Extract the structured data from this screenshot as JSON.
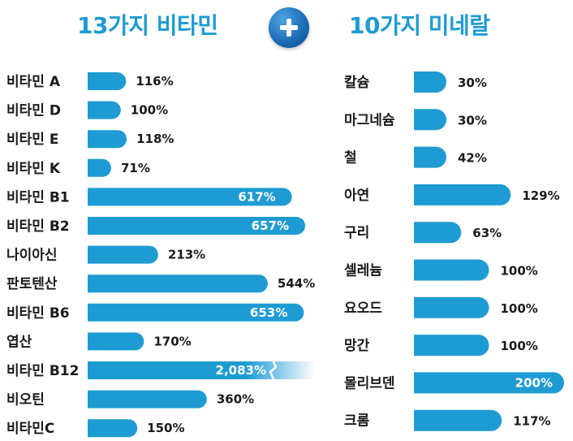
{
  "header": {
    "left_title": "13가지 비타민",
    "right_title": "10가지 미네랄",
    "plus_icon": "plus-icon"
  },
  "colors": {
    "bar": "#1f9bd3",
    "title": "#1f9bd3",
    "text": "#1a1a1a"
  },
  "chart_data": [
    {
      "type": "bar",
      "orientation": "horizontal",
      "title": "13가지 비타민",
      "categories": [
        "비타민 A",
        "비타민 D",
        "비타민 E",
        "비타민 K",
        "비타민 B1",
        "비타민 B2",
        "나이아신",
        "판토텐산",
        "비타민 B6",
        "엽산",
        "비타민 B12",
        "비오틴",
        "비타민C"
      ],
      "values": [
        116,
        100,
        118,
        71,
        617,
        657,
        213,
        544,
        653,
        170,
        2083,
        360,
        150
      ],
      "labels": [
        "116%",
        "100%",
        "118%",
        "71%",
        "617%",
        "657%",
        "213%",
        "544%",
        "653%",
        "170%",
        "2,083%",
        "360%",
        "150%"
      ],
      "axis_break_values": [
        2083
      ]
    },
    {
      "type": "bar",
      "orientation": "horizontal",
      "title": "10가지 미네랄",
      "categories": [
        "칼슘",
        "마그네슘",
        "철",
        "아연",
        "구리",
        "셀레늄",
        "요오드",
        "망간",
        "몰리브덴",
        "크롬"
      ],
      "values": [
        30,
        30,
        42,
        129,
        63,
        100,
        100,
        100,
        200,
        117
      ],
      "labels": [
        "30%",
        "30%",
        "42%",
        "129%",
        "63%",
        "100%",
        "100%",
        "100%",
        "200%",
        "117%"
      ]
    }
  ]
}
